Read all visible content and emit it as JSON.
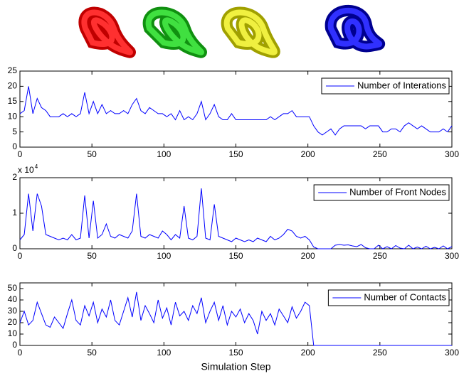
{
  "chart_data": [
    {
      "type": "line",
      "xlim": [
        0,
        300
      ],
      "xticks": [
        0,
        50,
        100,
        150,
        200,
        250,
        300
      ],
      "ylim": [
        0,
        25
      ],
      "yticks": [
        0,
        5,
        10,
        15,
        20,
        25
      ],
      "x": [
        0,
        3,
        6,
        9,
        12,
        15,
        18,
        21,
        24,
        27,
        30,
        33,
        36,
        39,
        42,
        45,
        48,
        51,
        54,
        57,
        60,
        63,
        66,
        69,
        72,
        75,
        78,
        81,
        84,
        87,
        90,
        93,
        96,
        99,
        102,
        105,
        108,
        111,
        114,
        117,
        120,
        123,
        126,
        129,
        132,
        135,
        138,
        141,
        144,
        147,
        150,
        153,
        156,
        159,
        162,
        165,
        168,
        171,
        174,
        177,
        180,
        183,
        186,
        189,
        192,
        195,
        198,
        201,
        204,
        207,
        210,
        213,
        216,
        219,
        222,
        225,
        228,
        231,
        234,
        237,
        240,
        243,
        246,
        249,
        252,
        255,
        258,
        261,
        264,
        267,
        270,
        273,
        276,
        279,
        282,
        285,
        288,
        291,
        294,
        297,
        300
      ],
      "series": [
        {
          "name": "Number of Interations",
          "color": "#0000ff",
          "values": [
            11,
            12,
            20,
            11,
            16,
            13,
            12,
            10,
            10,
            10,
            11,
            10,
            11,
            10,
            11,
            18,
            11,
            15,
            11,
            14,
            11,
            12,
            11,
            11,
            12,
            11,
            14,
            16,
            12,
            11,
            13,
            12,
            11,
            11,
            10,
            11,
            9,
            12,
            9,
            10,
            9,
            11,
            15,
            9,
            11,
            14,
            10,
            9,
            9,
            11,
            9,
            9,
            9,
            9,
            9,
            9,
            9,
            9,
            10,
            9,
            10,
            11,
            11,
            12,
            10,
            10,
            10,
            10,
            7,
            5,
            4,
            5,
            6,
            4,
            6,
            7,
            7,
            7,
            7,
            7,
            6,
            7,
            7,
            7,
            5,
            5,
            6,
            6,
            5,
            7,
            8,
            7,
            6,
            7,
            6,
            5,
            5,
            5,
            6,
            5,
            7
          ]
        }
      ]
    },
    {
      "type": "line",
      "xlim": [
        0,
        300
      ],
      "xticks": [
        0,
        50,
        100,
        150,
        200,
        250,
        300
      ],
      "ylim": [
        0,
        20000
      ],
      "yticks": [
        {
          "value": 0,
          "label": "0"
        },
        {
          "value": 10000,
          "label": "1"
        },
        {
          "value": 20000,
          "label": "2"
        }
      ],
      "y_multiplier": "x 10",
      "y_multiplier_exponent": "4",
      "x": [
        0,
        3,
        6,
        9,
        12,
        15,
        18,
        21,
        24,
        27,
        30,
        33,
        36,
        39,
        42,
        45,
        48,
        51,
        54,
        57,
        60,
        63,
        66,
        69,
        72,
        75,
        78,
        81,
        84,
        87,
        90,
        93,
        96,
        99,
        102,
        105,
        108,
        111,
        114,
        117,
        120,
        123,
        126,
        129,
        132,
        135,
        138,
        141,
        144,
        147,
        150,
        153,
        156,
        159,
        162,
        165,
        168,
        171,
        174,
        177,
        180,
        183,
        186,
        189,
        192,
        195,
        198,
        201,
        204,
        207,
        210,
        213,
        216,
        219,
        222,
        225,
        228,
        231,
        234,
        237,
        240,
        243,
        246,
        249,
        252,
        255,
        258,
        261,
        264,
        267,
        270,
        273,
        276,
        279,
        282,
        285,
        288,
        291,
        294,
        297,
        300
      ],
      "series": [
        {
          "name": "Number of Front Nodes",
          "color": "#0000ff",
          "values": [
            2500,
            4000,
            15500,
            5000,
            15500,
            12000,
            4000,
            3500,
            3000,
            2500,
            3000,
            2500,
            4000,
            2500,
            3000,
            15000,
            3000,
            13500,
            3000,
            4000,
            7000,
            3500,
            3000,
            4000,
            3500,
            3000,
            5000,
            15500,
            3500,
            3000,
            4000,
            3500,
            3000,
            5000,
            4000,
            2500,
            4000,
            3000,
            12000,
            3000,
            2500,
            3500,
            17000,
            3000,
            2500,
            12500,
            3500,
            3000,
            2500,
            2000,
            3000,
            2500,
            2000,
            2500,
            2000,
            3000,
            2500,
            2000,
            3500,
            2500,
            3000,
            4000,
            5500,
            5000,
            3500,
            3000,
            3500,
            2500,
            500,
            0,
            0,
            0,
            0,
            1000,
            1200,
            1000,
            1100,
            800,
            600,
            1200,
            300,
            0,
            0,
            1000,
            0,
            600,
            0,
            900,
            200,
            0,
            1000,
            0,
            500,
            0,
            700,
            0,
            400,
            0,
            800,
            0,
            600
          ]
        }
      ]
    },
    {
      "type": "line",
      "xlim": [
        0,
        300
      ],
      "xticks": [
        0,
        50,
        100,
        150,
        200,
        250,
        300
      ],
      "ylim": [
        0,
        55
      ],
      "yticks": [
        0,
        10,
        20,
        30,
        40,
        50
      ],
      "x_label": "Simulation Step",
      "x": [
        0,
        3,
        6,
        9,
        12,
        15,
        18,
        21,
        24,
        27,
        30,
        33,
        36,
        39,
        42,
        45,
        48,
        51,
        54,
        57,
        60,
        63,
        66,
        69,
        72,
        75,
        78,
        81,
        84,
        87,
        90,
        93,
        96,
        99,
        102,
        105,
        108,
        111,
        114,
        117,
        120,
        123,
        126,
        129,
        132,
        135,
        138,
        141,
        144,
        147,
        150,
        153,
        156,
        159,
        162,
        165,
        168,
        171,
        174,
        177,
        180,
        183,
        186,
        189,
        192,
        195,
        198,
        201,
        204,
        207,
        210,
        213,
        216,
        219,
        222,
        225,
        228,
        231,
        234,
        237,
        240,
        243,
        246,
        249,
        252,
        255,
        258,
        261,
        264,
        267,
        270,
        273,
        276,
        279,
        282,
        285,
        288,
        291,
        294,
        297,
        300
      ],
      "series": [
        {
          "name": "Number of Contacts",
          "color": "#0000ff",
          "values": [
            20,
            30,
            18,
            22,
            38,
            28,
            18,
            16,
            25,
            20,
            15,
            28,
            40,
            22,
            18,
            35,
            26,
            38,
            20,
            32,
            25,
            40,
            22,
            18,
            30,
            42,
            25,
            47,
            22,
            35,
            28,
            20,
            40,
            24,
            33,
            18,
            38,
            26,
            30,
            22,
            35,
            28,
            42,
            20,
            30,
            38,
            22,
            35,
            18,
            30,
            25,
            32,
            20,
            28,
            22,
            10,
            30,
            22,
            28,
            18,
            32,
            26,
            20,
            34,
            24,
            30,
            38,
            35,
            0,
            0,
            0,
            0,
            0,
            0,
            0,
            0,
            0,
            0,
            0,
            0,
            0,
            0,
            0,
            0,
            0,
            0,
            0,
            0,
            0,
            0,
            0,
            0,
            0,
            0,
            0,
            0,
            0,
            0,
            0,
            0,
            0
          ]
        }
      ]
    }
  ]
}
